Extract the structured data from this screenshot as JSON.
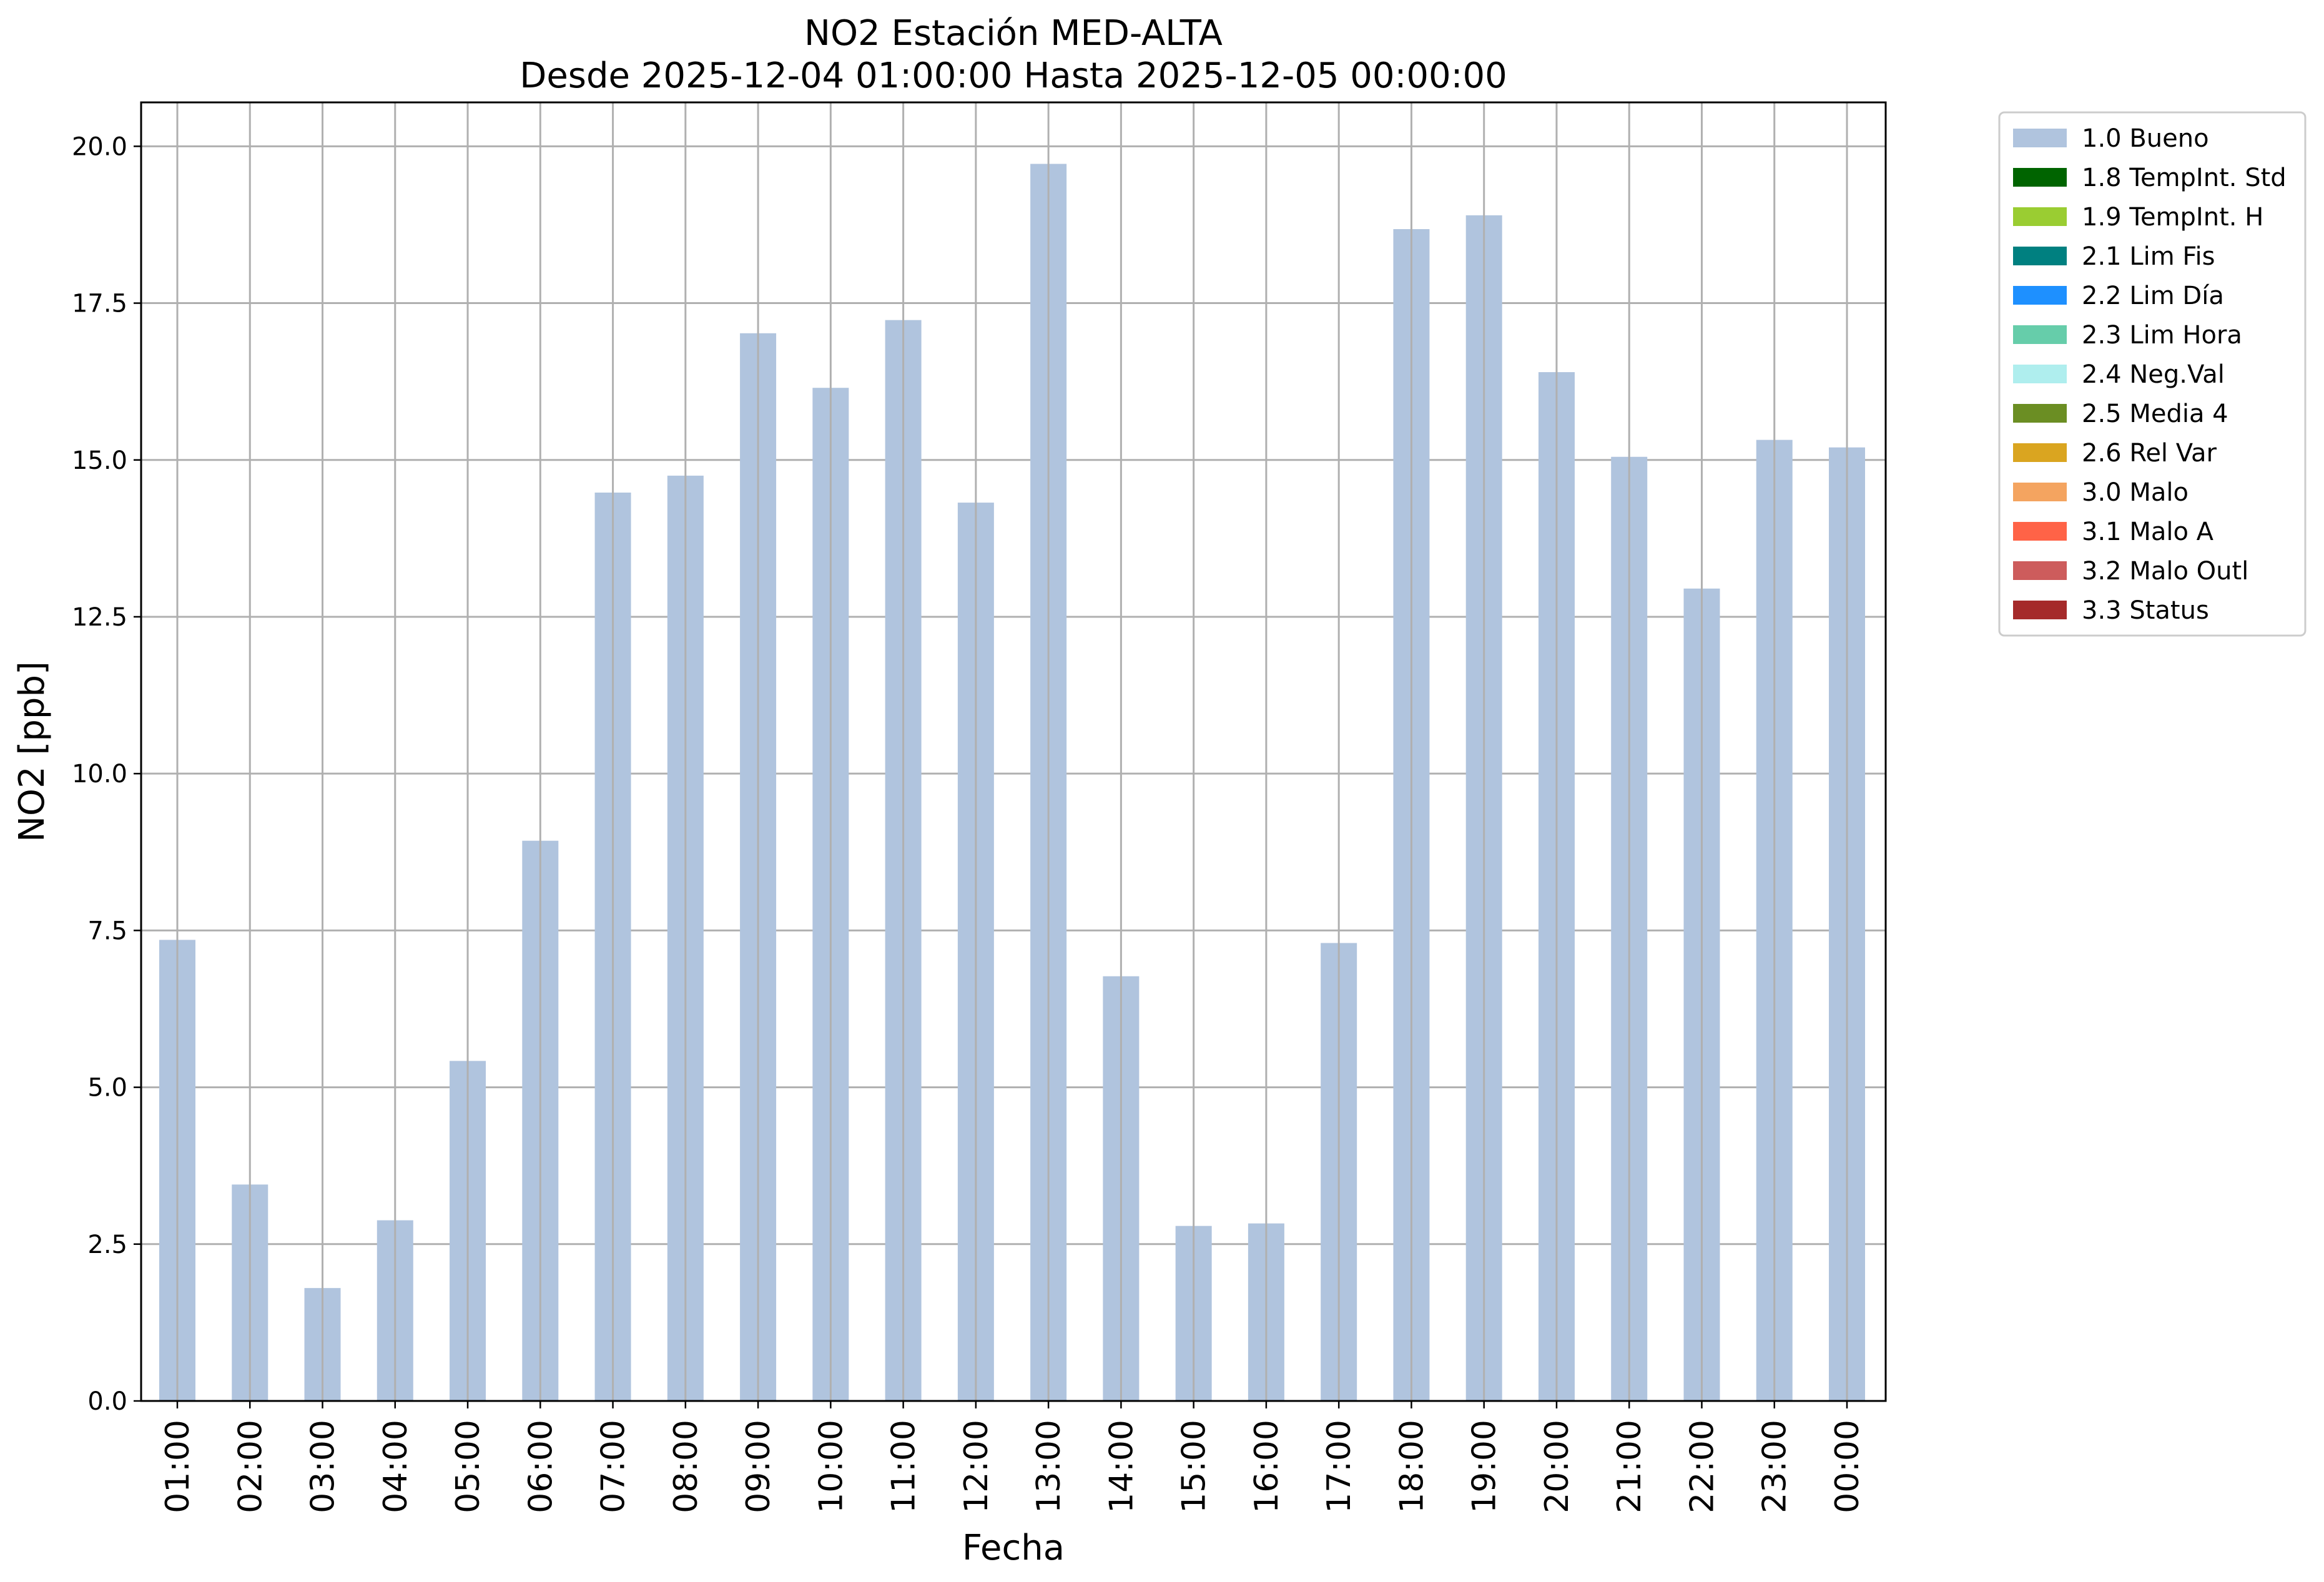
{
  "chart_data": {
    "type": "bar",
    "title": "NO2 Estación MED-ALTA",
    "subtitle": "Desde 2025-12-04 01:00:00 Hasta 2025-12-05 00:00:00",
    "xlabel": "Fecha",
    "ylabel": "NO2 [ppb]",
    "ylim": [
      0,
      20.7
    ],
    "yticks": [
      "0.0",
      "2.5",
      "5.0",
      "7.5",
      "10.0",
      "12.5",
      "15.0",
      "17.5",
      "20.0"
    ],
    "grid": true,
    "legend_position": "outside-top-right",
    "categories": [
      "01:00",
      "02:00",
      "03:00",
      "04:00",
      "05:00",
      "06:00",
      "07:00",
      "08:00",
      "09:00",
      "10:00",
      "11:00",
      "12:00",
      "13:00",
      "14:00",
      "15:00",
      "16:00",
      "17:00",
      "18:00",
      "19:00",
      "20:00",
      "21:00",
      "22:00",
      "23:00",
      "00:00"
    ],
    "series": [
      {
        "name": "1.0 Bueno",
        "color": "#b0c4de",
        "values": [
          7.35,
          3.45,
          1.8,
          2.88,
          5.42,
          8.93,
          14.48,
          14.75,
          17.02,
          16.15,
          17.23,
          14.32,
          19.72,
          6.77,
          2.79,
          2.83,
          7.3,
          18.68,
          18.9,
          16.4,
          15.05,
          12.95,
          15.32,
          15.2
        ]
      }
    ],
    "legend": [
      {
        "label": "1.0 Bueno",
        "color": "#b0c4de"
      },
      {
        "label": "1.8 TempInt. Std",
        "color": "#006400"
      },
      {
        "label": "1.9 TempInt. H",
        "color": "#9acd32"
      },
      {
        "label": "2.1 Lim Fis",
        "color": "#008080"
      },
      {
        "label": "2.2 Lim Día",
        "color": "#1e90ff"
      },
      {
        "label": "2.3 Lim Hora",
        "color": "#66cdaa"
      },
      {
        "label": "2.4 Neg.Val",
        "color": "#afeeee"
      },
      {
        "label": "2.5 Media 4",
        "color": "#6b8e23"
      },
      {
        "label": "2.6 Rel Var",
        "color": "#daa520"
      },
      {
        "label": "3.0 Malo",
        "color": "#f4a460"
      },
      {
        "label": "3.1 Malo A",
        "color": "#ff6347"
      },
      {
        "label": "3.2 Malo Outl",
        "color": "#cd5c5c"
      },
      {
        "label": "3.3 Status",
        "color": "#a52a2a"
      }
    ]
  }
}
